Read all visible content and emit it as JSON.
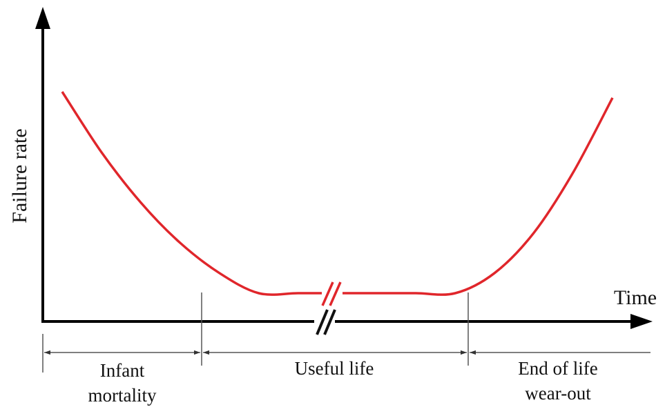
{
  "chart_data": {
    "type": "line",
    "title": "",
    "xlabel": "Time",
    "ylabel": "Failure rate",
    "grid": false,
    "legend": "none",
    "axis_break": true,
    "colors": {
      "curve": "#e0262b",
      "axis": "#000000",
      "annotation": "#333333"
    },
    "series": [
      {
        "values": [
          1.0,
          0.7,
          0.45,
          0.25,
          0.1,
          0.0,
          0.0,
          0.0,
          0.0,
          0.0,
          0.0,
          0.1,
          0.3,
          0.6,
          0.97
        ]
      }
    ],
    "phases": [
      {
        "label_line1": "Infant",
        "label_line2": "mortality"
      },
      {
        "label_line1": "Useful life",
        "label_line2": ""
      },
      {
        "label_line1": "End of life",
        "label_line2": "wear-out"
      }
    ]
  }
}
